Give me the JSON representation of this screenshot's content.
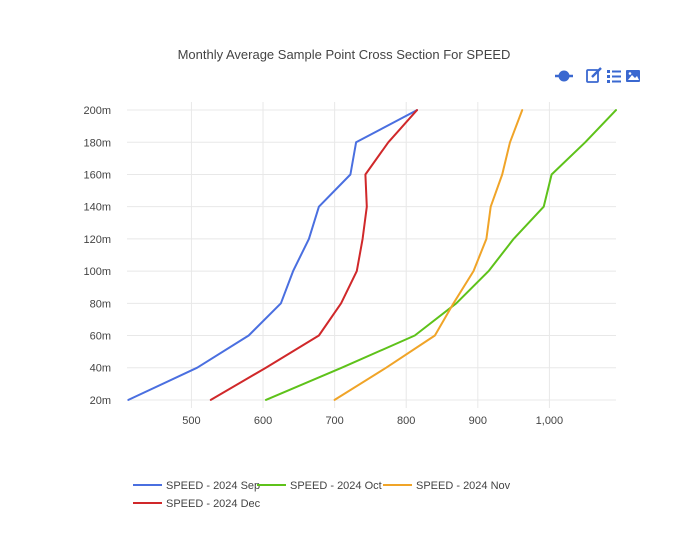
{
  "chart_data": {
    "type": "line",
    "title": "Monthly Average Sample Point Cross Section For SPEED",
    "xlabel": "",
    "ylabel": "",
    "xlim": [
      410,
      1093
    ],
    "ylim": [
      15,
      205
    ],
    "x_ticks": [
      500,
      600,
      700,
      800,
      900,
      1000
    ],
    "x_tick_labels": [
      "500",
      "600",
      "700",
      "800",
      "900",
      "1,000"
    ],
    "y_ticks": [
      20,
      40,
      60,
      80,
      100,
      120,
      140,
      160,
      180,
      200
    ],
    "y_tick_labels": [
      "20m",
      "40m",
      "60m",
      "80m",
      "100m",
      "120m",
      "140m",
      "160m",
      "180m",
      "200m"
    ],
    "grid": true,
    "legend_position": "bottom",
    "series": [
      {
        "name": "SPEED - 2024 Sep",
        "color": "#4a6fe0",
        "points": [
          {
            "x": 412,
            "y": 20
          },
          {
            "x": 508,
            "y": 40
          },
          {
            "x": 580,
            "y": 60
          },
          {
            "x": 625,
            "y": 80
          },
          {
            "x": 642,
            "y": 100
          },
          {
            "x": 664,
            "y": 120
          },
          {
            "x": 678,
            "y": 140
          },
          {
            "x": 722,
            "y": 160
          },
          {
            "x": 730,
            "y": 180
          },
          {
            "x": 815,
            "y": 200
          }
        ]
      },
      {
        "name": "SPEED - 2024 Oct",
        "color": "#5ec21a",
        "points": [
          {
            "x": 604,
            "y": 20
          },
          {
            "x": 710,
            "y": 40
          },
          {
            "x": 812,
            "y": 60
          },
          {
            "x": 870,
            "y": 80
          },
          {
            "x": 915,
            "y": 100
          },
          {
            "x": 950,
            "y": 120
          },
          {
            "x": 992,
            "y": 140
          },
          {
            "x": 1003,
            "y": 160
          },
          {
            "x": 1050,
            "y": 180
          },
          {
            "x": 1093,
            "y": 200
          }
        ]
      },
      {
        "name": "SPEED - 2024 Nov",
        "color": "#f0a428",
        "points": [
          {
            "x": 700,
            "y": 20
          },
          {
            "x": 772,
            "y": 40
          },
          {
            "x": 840,
            "y": 60
          },
          {
            "x": 866,
            "y": 80
          },
          {
            "x": 894,
            "y": 100
          },
          {
            "x": 912,
            "y": 120
          },
          {
            "x": 918,
            "y": 140
          },
          {
            "x": 934,
            "y": 160
          },
          {
            "x": 945,
            "y": 180
          },
          {
            "x": 962,
            "y": 200
          }
        ]
      },
      {
        "name": "SPEED - 2024 Dec",
        "color": "#d0282a",
        "points": [
          {
            "x": 527,
            "y": 20
          },
          {
            "x": 604,
            "y": 40
          },
          {
            "x": 678,
            "y": 60
          },
          {
            "x": 709,
            "y": 80
          },
          {
            "x": 731,
            "y": 100
          },
          {
            "x": 739,
            "y": 120
          },
          {
            "x": 745,
            "y": 140
          },
          {
            "x": 743,
            "y": 160
          },
          {
            "x": 775,
            "y": 180
          },
          {
            "x": 815,
            "y": 200
          }
        ]
      }
    ]
  },
  "toolbar": {
    "accent_color": "#3a68d0",
    "icons": [
      "toggle-line-icon",
      "edit-icon",
      "list-icon",
      "image-icon"
    ]
  }
}
